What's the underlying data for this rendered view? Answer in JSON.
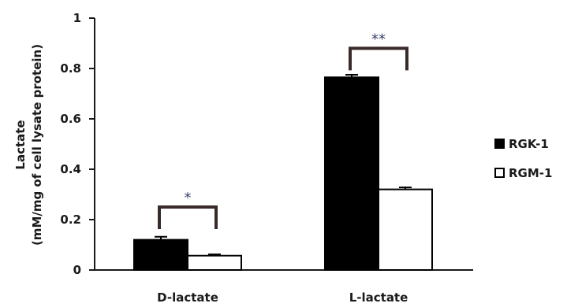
{
  "chart_data": {
    "type": "bar",
    "ylabel_line1": "Lactate",
    "ylabel_line2": "(mM/mg of cell lysate protein)",
    "xlabel": "",
    "ylim": [
      0,
      1
    ],
    "yticks": [
      "0",
      "0.2",
      "0.4",
      "0.6",
      "0.8",
      "1"
    ],
    "ytick_values": [
      0,
      0.2,
      0.4,
      0.6,
      0.8,
      1
    ],
    "categories": [
      "D-lactate",
      "L-lactate"
    ],
    "series": [
      {
        "name": "RGK-1",
        "values": [
          0.12,
          0.765
        ],
        "errors": [
          0.012,
          0.01
        ],
        "fill": "#000000"
      },
      {
        "name": "RGM-1",
        "values": [
          0.057,
          0.32
        ],
        "errors": [
          0.005,
          0.008
        ],
        "fill": "#ffffff"
      }
    ],
    "significance": [
      {
        "category_index": 0,
        "label": "*",
        "level": 0.25
      },
      {
        "category_index": 1,
        "label": "**",
        "level": 0.88
      }
    ],
    "legend_position": "right",
    "grid": false,
    "colors": {
      "axis": "#1a1a1a",
      "bracket": "#3a2a2a",
      "sig_text": "#3a3f6a"
    }
  }
}
